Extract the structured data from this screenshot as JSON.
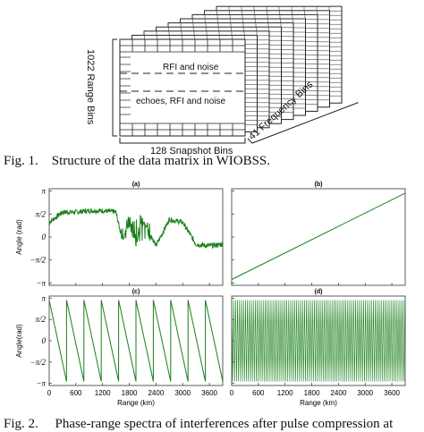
{
  "figure1": {
    "front_labels": [
      "RFI and noise",
      "echoes, RFI and noise"
    ],
    "range_axis_label": "1022 Range Bins",
    "snapshot_axis_label": "128 Snapshot Bins",
    "frequency_axis_label": "41 Frequency Bins",
    "caption_prefix": "Fig. 1.",
    "caption_text": "Structure of the data matrix in WIOBSS."
  },
  "figure2": {
    "colors": {
      "line": "#1a7f1a",
      "axis": "#333333"
    },
    "panels": [
      {
        "title": "(a)",
        "ylabel": "Angle (rad)",
        "pattern": "noisy-flat"
      },
      {
        "title": "(b)",
        "ylabel": "",
        "pattern": "linear"
      },
      {
        "title": "(c)",
        "ylabel": "Angle(rad)",
        "pattern": "sawtooth"
      },
      {
        "title": "(d)",
        "ylabel": "",
        "pattern": "dense-oscillation"
      }
    ],
    "yticks": [
      "π",
      "π/2",
      "0",
      "−π/2",
      "−π"
    ],
    "xticks": [
      "0",
      "600",
      "1200",
      "1800",
      "2400",
      "3000",
      "3600"
    ],
    "xlabel": "Range (km)",
    "caption_prefix": "Fig. 2.",
    "caption_text": "Phase-range spectra of interferences after pulse compression at"
  },
  "chart_data": [
    {
      "type": "line",
      "title": "(a)",
      "xlabel": "",
      "ylabel": "Angle (rad)",
      "xlim": [
        0,
        3900
      ],
      "ylim": [
        -3.3,
        3.3
      ],
      "series": [
        {
          "x": [
            0,
            300,
            600,
            900,
            1200,
            1500,
            1650,
            1800,
            1950,
            2100,
            2400,
            2700,
            3000,
            3300,
            3600,
            3900
          ],
          "y": [
            1.0,
            1.7,
            1.7,
            1.8,
            1.8,
            1.7,
            -0.3,
            1.4,
            -0.5,
            1.3,
            -0.6,
            1.2,
            1.0,
            -0.5,
            -0.6,
            -0.5
          ]
        }
      ]
    },
    {
      "type": "line",
      "title": "(b)",
      "xlabel": "",
      "ylabel": "",
      "xlim": [
        0,
        3900
      ],
      "ylim": [
        -3.3,
        3.3
      ],
      "series": [
        {
          "x": [
            0,
            3900
          ],
          "y": [
            -2.9,
            3.0
          ]
        }
      ]
    },
    {
      "type": "line",
      "title": "(c)",
      "xlabel": "Range (km)",
      "ylabel": "Angle(rad)",
      "xlim": [
        0,
        3900
      ],
      "ylim": [
        -3.3,
        3.3
      ],
      "series": [
        {
          "x": [
            0,
            390,
            391,
            780,
            781,
            1170,
            1171,
            1560,
            1561,
            1950,
            1951,
            2340,
            2341,
            2730,
            2731,
            3120,
            3121,
            3510,
            3511,
            3900
          ],
          "y": [
            3.0,
            -3.0,
            3.0,
            -3.0,
            3.0,
            -3.0,
            3.0,
            -3.0,
            3.0,
            -3.0,
            3.0,
            -3.0,
            3.0,
            -3.0,
            3.0,
            -3.0,
            3.0,
            -3.0,
            3.0,
            -3.0
          ]
        }
      ]
    },
    {
      "type": "line",
      "title": "(d)",
      "xlabel": "Range (km)",
      "ylabel": "",
      "xlim": [
        0,
        3900
      ],
      "ylim": [
        -3.3,
        3.3
      ],
      "series": [
        {
          "x": [
            0,
            3900
          ],
          "y": [
            -3.0,
            3.0
          ]
        }
      ]
    }
  ]
}
